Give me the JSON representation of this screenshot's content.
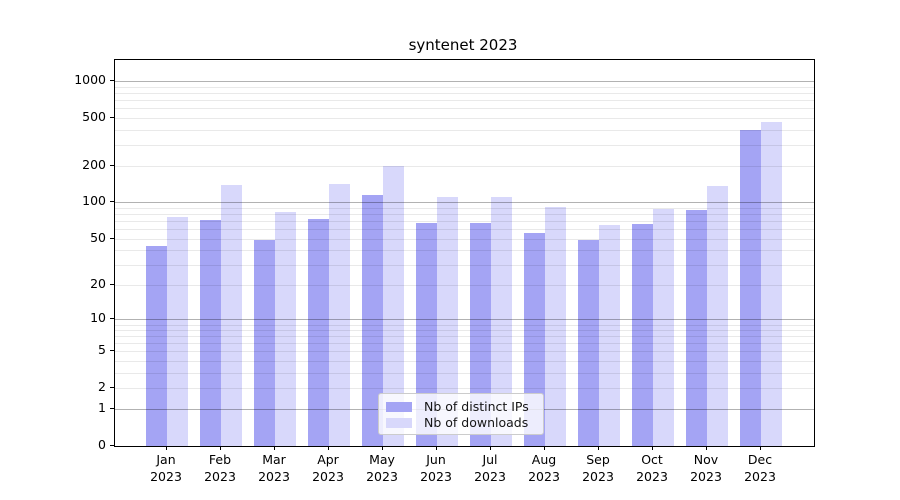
{
  "title": "syntenet 2023",
  "chart_data": {
    "type": "bar",
    "title": "syntenet 2023",
    "categories": [
      "Jan 2023",
      "Feb 2023",
      "Mar 2023",
      "Apr 2023",
      "May 2023",
      "Jun 2023",
      "Jul 2023",
      "Aug 2023",
      "Sep 2023",
      "Oct 2023",
      "Nov 2023",
      "Dec 2023"
    ],
    "month_labels": [
      "Jan",
      "Feb",
      "Mar",
      "Apr",
      "May",
      "Jun",
      "Jul",
      "Aug",
      "Sep",
      "Oct",
      "Nov",
      "Dec"
    ],
    "year_label": "2023",
    "series": [
      {
        "name": "Nb of distinct IPs",
        "color": "#a4a4f4",
        "values": [
          43,
          71,
          49,
          73,
          115,
          68,
          67,
          56,
          49,
          66,
          87,
          400
        ]
      },
      {
        "name": "Nb of downloads",
        "color": "#d8d8fb",
        "values": [
          76,
          139,
          83,
          143,
          202,
          112,
          110,
          92,
          65,
          89,
          138,
          465
        ]
      }
    ],
    "xlabel": "",
    "ylabel": "",
    "yscale": "log(value+1)",
    "ylim": [
      0,
      1500
    ],
    "y_tick_values": [
      1000,
      500,
      200,
      100,
      50,
      20,
      10,
      5,
      2,
      1,
      0
    ],
    "y_major_gridlines": [
      1,
      10,
      100,
      1000
    ],
    "y_minor_gridlines": [
      2,
      3,
      4,
      5,
      6,
      7,
      8,
      9,
      20,
      30,
      40,
      50,
      60,
      70,
      80,
      90,
      200,
      300,
      400,
      500,
      600,
      700,
      800,
      900
    ],
    "grid": true,
    "legend_position": "lower center"
  },
  "colors": {
    "background": "#ffffff",
    "axis": "#000000",
    "text": "#000000",
    "grid_major": "rgba(0,0,0,0.30)",
    "grid_minor": "rgba(0,0,0,0.085)",
    "legend_border": "#cccccc",
    "legend_background": "rgba(255,255,255,0.8)"
  }
}
